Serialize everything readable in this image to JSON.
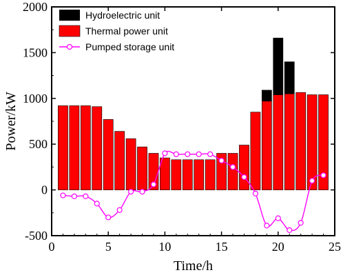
{
  "chart_data": {
    "type": "bar",
    "title": "",
    "xlabel": "Time/h",
    "ylabel": "Power/kW",
    "xlim": [
      0,
      25
    ],
    "ylim": [
      -500,
      2000
    ],
    "xticks": [
      0,
      5,
      10,
      15,
      20,
      25
    ],
    "yticks": [
      -500,
      0,
      500,
      1000,
      1500,
      2000
    ],
    "x": [
      1,
      2,
      3,
      4,
      5,
      6,
      7,
      8,
      9,
      10,
      11,
      12,
      13,
      14,
      15,
      16,
      17,
      18,
      19,
      20,
      21,
      22,
      23,
      24
    ],
    "series": [
      {
        "name": "Hydroelectric unit",
        "kind": "bar-stacked",
        "color": "#000000",
        "values": [
          0,
          0,
          0,
          0,
          0,
          0,
          0,
          0,
          0,
          0,
          0,
          0,
          0,
          0,
          0,
          0,
          0,
          0,
          120,
          620,
          350,
          0,
          0,
          0
        ]
      },
      {
        "name": "Thermal power unit",
        "kind": "bar-base",
        "color": "#ff0000",
        "values": [
          920,
          920,
          920,
          910,
          770,
          640,
          560,
          470,
          400,
          350,
          330,
          330,
          330,
          330,
          400,
          400,
          490,
          850,
          970,
          1040,
          1050,
          1065,
          1040,
          1040
        ]
      },
      {
        "name": "Pumped storage unit",
        "kind": "line",
        "color": "#ff00ff",
        "values": [
          -60,
          -70,
          -70,
          -150,
          -300,
          -220,
          -20,
          -20,
          60,
          400,
          390,
          390,
          390,
          390,
          320,
          250,
          140,
          -40,
          -390,
          -310,
          -440,
          -360,
          100,
          160
        ]
      }
    ],
    "legend": {
      "position": "top-left",
      "entries": [
        "Hydroelectric unit",
        "Thermal power unit",
        "Pumped storage unit"
      ]
    },
    "grid": false
  }
}
